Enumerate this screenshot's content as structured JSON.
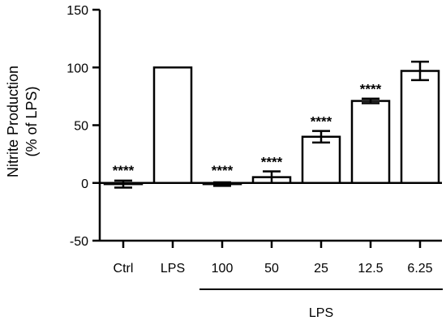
{
  "chart_data": {
    "type": "bar",
    "categories": [
      "Ctrl",
      "LPS",
      "100",
      "50",
      "25",
      "12.5",
      "6.25"
    ],
    "values": [
      -1,
      100,
      -1,
      5,
      40,
      71,
      97
    ],
    "errors": [
      3,
      0,
      1.5,
      5,
      5,
      2,
      8
    ],
    "annotations": [
      "****",
      "",
      "****",
      "****",
      "****",
      "****",
      ""
    ],
    "ylabel_lines": [
      "Nitrite Production",
      "(% of LPS)"
    ],
    "xlabel": "",
    "ylim": [
      -50,
      150
    ],
    "yticks": [
      -50,
      0,
      50,
      100,
      150
    ],
    "group_label": "LPS",
    "group_start_index": 2,
    "group_end_index": 6,
    "grid": false,
    "bar_fill": "#ffffff",
    "bar_stroke": "#000000"
  }
}
